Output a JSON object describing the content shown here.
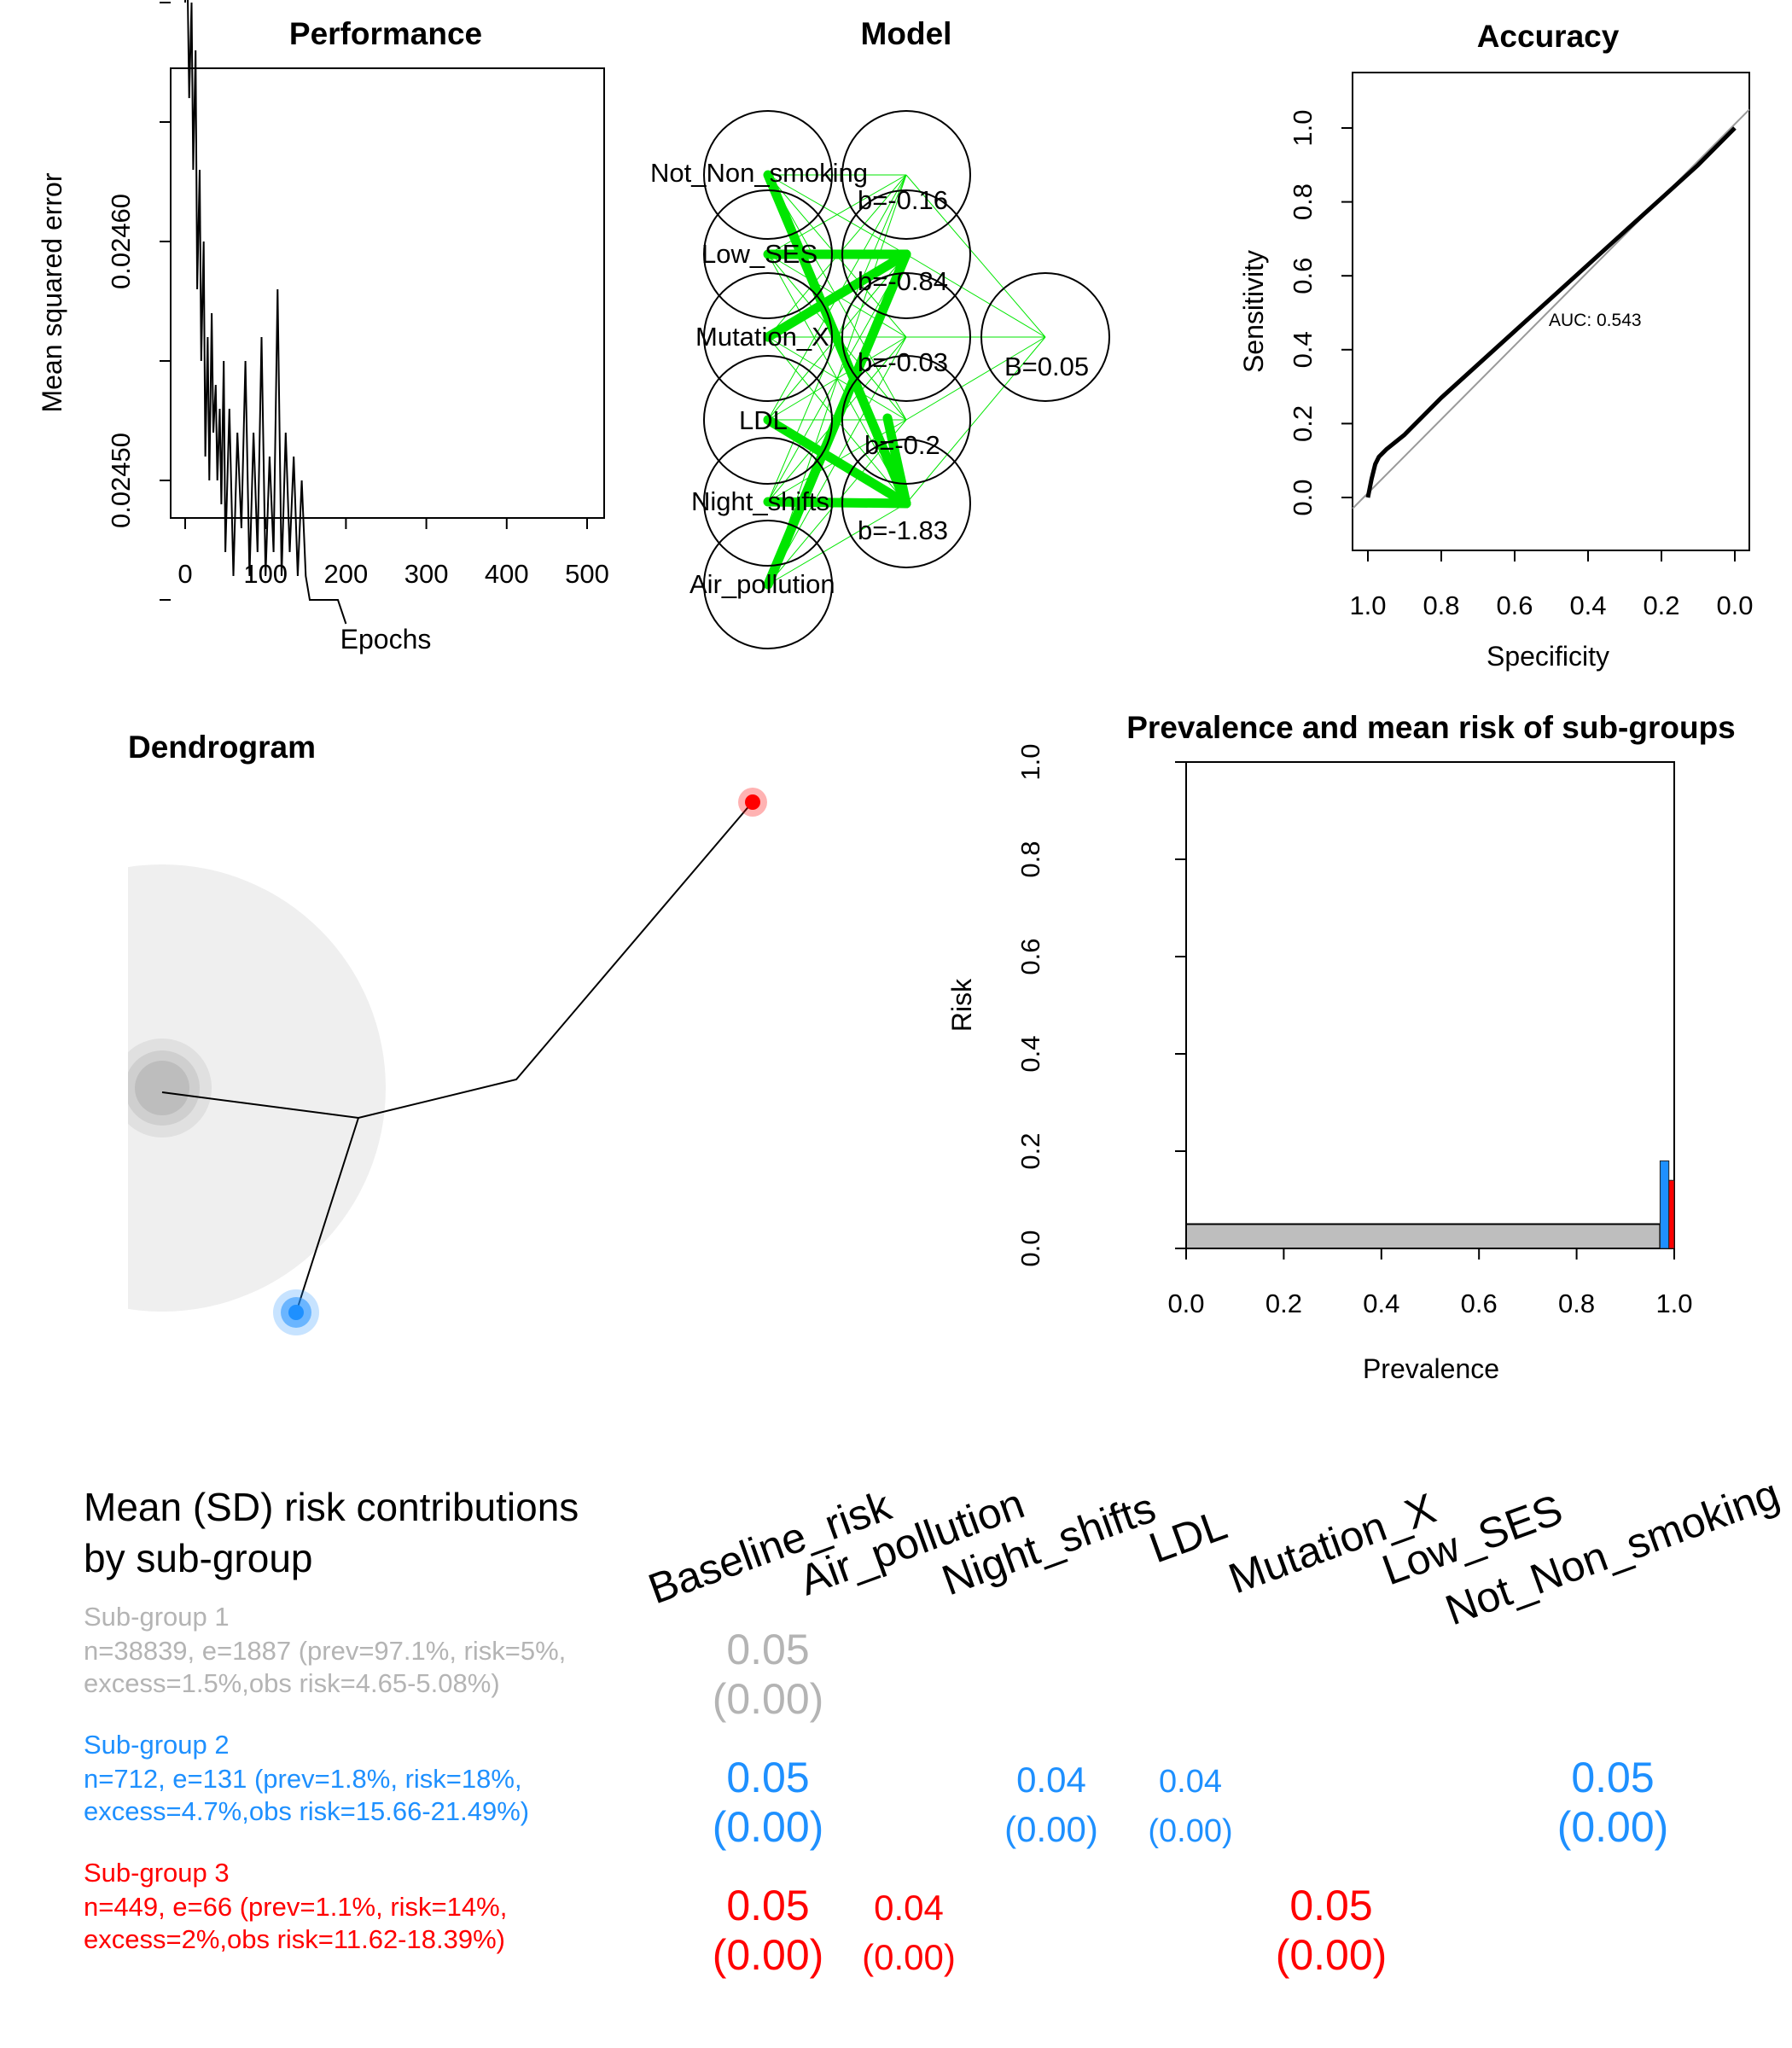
{
  "performance": {
    "title": "Performance",
    "xlabel": "Epochs",
    "ylabel": "Mean squared error",
    "x_ticks": [
      0,
      100,
      200,
      300,
      400,
      500
    ],
    "y_tick_labels": [
      "0.02450",
      "0.02460"
    ]
  },
  "model": {
    "title": "Model",
    "inputs": [
      "Not_Non_smoking",
      "Low_SES",
      "Mutation_X",
      "LDL",
      "Night_shifts",
      "Air_pollution"
    ],
    "hidden_biases": [
      "b=-0.16",
      "b=-0.84",
      "b=-0.03",
      "b=-0.2",
      "b=-1.83"
    ],
    "output_bias": "B=0.05",
    "edge_color": "#00e600"
  },
  "accuracy": {
    "title": "Accuracy",
    "xlabel": "Specificity",
    "ylabel": "Sensitivity",
    "x_tick_labels": [
      "1.0",
      "0.8",
      "0.6",
      "0.4",
      "0.2",
      "0.0"
    ],
    "y_tick_labels": [
      "0.0",
      "0.2",
      "0.4",
      "0.6",
      "0.8",
      "1.0"
    ],
    "auc_label": "AUC: 0.543"
  },
  "dendrogram": {
    "title": "Dendrogram",
    "colors": {
      "root": "#b0b0b0",
      "sub2": "#1e90ff",
      "sub3": "#ff0000"
    }
  },
  "prevalence": {
    "title": "Prevalence and mean risk of sub-groups",
    "xlabel": "Prevalence",
    "ylabel": "Risk",
    "x_tick_labels": [
      "0.0",
      "0.2",
      "0.4",
      "0.6",
      "0.8",
      "1.0"
    ],
    "y_tick_labels": [
      "0.0",
      "0.2",
      "0.4",
      "0.6",
      "0.8",
      "1.0"
    ]
  },
  "table": {
    "title_line1": "Mean (SD) risk contributions",
    "title_line2": "by sub-group",
    "columns": [
      "Baseline_risk",
      "Air_pollution",
      "Night_shifts",
      "LDL",
      "Mutation_X",
      "Low_SES",
      "Not_Non_smoking"
    ],
    "subgroups": [
      {
        "name": "Sub-group 1",
        "color": "#b4b4b4",
        "line1": "n=38839, e=1887 (prev=97.1%, risk=5%,",
        "line2": "excess=1.5%,obs risk=4.65-5.08%)",
        "cells": [
          {
            "col": 0,
            "mean": "0.05",
            "sd": "(0.00)"
          }
        ]
      },
      {
        "name": "Sub-group 2",
        "color": "#1e90ff",
        "line1": "n=712, e=131 (prev=1.8%, risk=18%,",
        "line2": "excess=4.7%,obs risk=15.66-21.49%)",
        "cells": [
          {
            "col": 0,
            "mean": "0.05",
            "sd": "(0.00)"
          },
          {
            "col": 2,
            "mean": "0.04",
            "sd": "(0.00)"
          },
          {
            "col": 3,
            "mean": "0.04",
            "sd": "(0.00)"
          },
          {
            "col": 6,
            "mean": "0.05",
            "sd": "(0.00)"
          }
        ]
      },
      {
        "name": "Sub-group 3",
        "color": "#ff0000",
        "line1": "n=449, e=66 (prev=1.1%, risk=14%,",
        "line2": "excess=2%,obs risk=11.62-18.39%)",
        "cells": [
          {
            "col": 0,
            "mean": "0.05",
            "sd": "(0.00)"
          },
          {
            "col": 1,
            "mean": "0.04",
            "sd": "(0.00)"
          },
          {
            "col": 4,
            "mean": "0.05",
            "sd": "(0.00)"
          }
        ]
      }
    ]
  },
  "chart_data": [
    {
      "type": "line",
      "title": "Performance",
      "xlabel": "Epochs",
      "ylabel": "Mean squared error",
      "xlim": [
        0,
        500
      ],
      "ylim": [
        0.02443,
        0.02475
      ],
      "x": [
        0,
        2,
        5,
        8,
        10,
        13,
        15,
        18,
        20,
        23,
        25,
        28,
        30,
        33,
        35,
        38,
        40,
        43,
        45,
        48,
        50,
        55,
        60,
        65,
        70,
        75,
        80,
        85,
        90,
        95,
        100,
        105,
        110,
        115,
        120,
        125,
        130,
        135,
        140,
        145,
        150,
        155,
        160,
        170,
        180,
        190,
        200
      ],
      "y": [
        0.0247,
        0.02473,
        0.02466,
        0.0247,
        0.02463,
        0.02468,
        0.02458,
        0.02463,
        0.02455,
        0.0246,
        0.02451,
        0.02456,
        0.0245,
        0.02457,
        0.02452,
        0.02454,
        0.0245,
        0.02453,
        0.02449,
        0.02455,
        0.02447,
        0.02453,
        0.02446,
        0.02452,
        0.02448,
        0.02455,
        0.02446,
        0.02452,
        0.02447,
        0.02456,
        0.02446,
        0.02451,
        0.02447,
        0.02458,
        0.02446,
        0.02452,
        0.02447,
        0.02451,
        0.02446,
        0.0245,
        0.02446,
        0.02445,
        0.02445,
        0.02445,
        0.02445,
        0.02445,
        0.02444
      ]
    },
    {
      "type": "line",
      "title": "Accuracy",
      "xlabel": "Specificity",
      "ylabel": "Sensitivity",
      "xlim": [
        1.0,
        0.0
      ],
      "ylim": [
        0.0,
        1.0
      ],
      "annotation": "AUC: 0.543",
      "specificity": [
        1.0,
        0.99,
        0.98,
        0.97,
        0.95,
        0.9,
        0.85,
        0.8,
        0.7,
        0.6,
        0.5,
        0.4,
        0.3,
        0.2,
        0.1,
        0.0
      ],
      "sensitivity": [
        0.0,
        0.05,
        0.09,
        0.11,
        0.13,
        0.17,
        0.22,
        0.27,
        0.36,
        0.45,
        0.54,
        0.63,
        0.72,
        0.81,
        0.9,
        1.0
      ]
    },
    {
      "type": "bar",
      "title": "Prevalence and mean risk of sub-groups",
      "xlabel": "Prevalence",
      "ylabel": "Risk",
      "xlim": [
        0.0,
        1.0
      ],
      "ylim": [
        0.0,
        1.0
      ],
      "series": [
        {
          "prevalence": 0.971,
          "risk": 0.05,
          "color": "#bebebe"
        },
        {
          "prevalence": 0.018,
          "risk": 0.18,
          "color": "#1e90ff"
        },
        {
          "prevalence": 0.011,
          "risk": 0.14,
          "color": "#ff0000"
        }
      ]
    }
  ]
}
